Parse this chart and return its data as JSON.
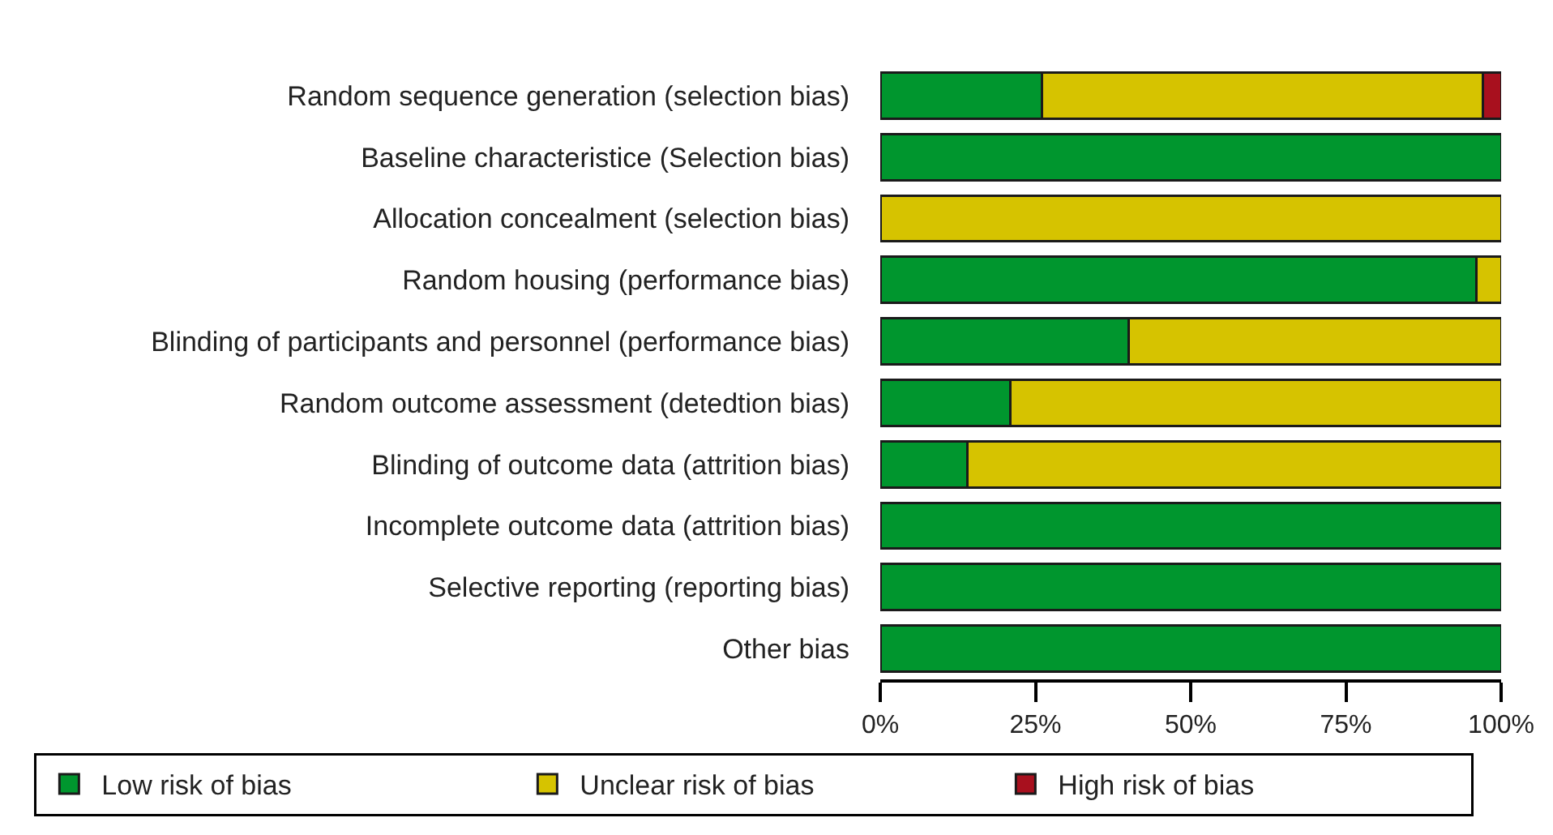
{
  "chart_data": {
    "type": "bar",
    "orientation": "horizontal",
    "stacked": true,
    "categories": [
      "Random sequence generation (selection bias)",
      "Baseline characteristice (Selection bias)",
      "Allocation concealment (selection bias)",
      "Random housing (performance bias)",
      "Blinding of participants and personnel (performance bias)",
      "Random outcome assessment (detedtion bias)",
      "Blinding of outcome data (attrition bias)",
      "Incomplete outcome data (attrition bias)",
      "Selective reporting (reporting bias)",
      "Other bias"
    ],
    "series": [
      {
        "name": "Low risk of bias",
        "color": "#00962e",
        "values": [
          26,
          100,
          0,
          96,
          40,
          21,
          14,
          100,
          100,
          100
        ]
      },
      {
        "name": "Unclear risk of bias",
        "color": "#d6c300",
        "values": [
          71,
          0,
          100,
          4,
          60,
          79,
          86,
          0,
          0,
          0
        ]
      },
      {
        "name": "High risk of bias",
        "color": "#a8101e",
        "values": [
          3,
          0,
          0,
          0,
          0,
          0,
          0,
          0,
          0,
          0
        ]
      }
    ],
    "xlim": [
      0,
      100
    ],
    "xticks": [
      {
        "value": 0,
        "label": "0%"
      },
      {
        "value": 25,
        "label": "25%"
      },
      {
        "value": 50,
        "label": "50%"
      },
      {
        "value": 75,
        "label": "75%"
      },
      {
        "value": 100,
        "label": "100%"
      }
    ],
    "legend": "bottom"
  }
}
